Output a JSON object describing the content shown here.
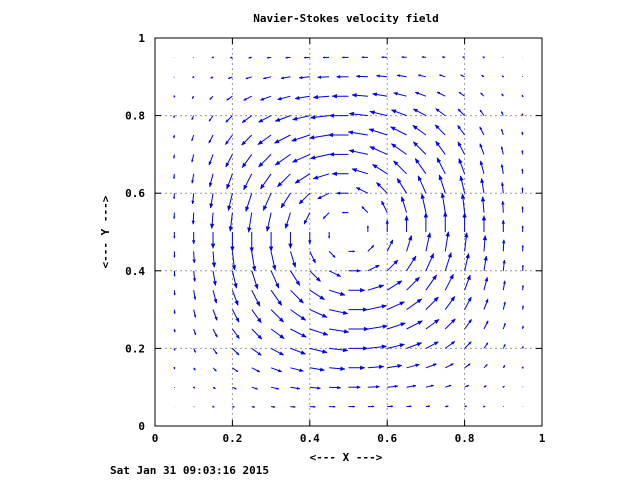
{
  "chart_data": {
    "type": "quiver",
    "title": "Navier-Stokes velocity field",
    "xlabel": "<--- X --->",
    "ylabel": "<--- Y --->",
    "xlim": [
      0,
      1
    ],
    "ylim": [
      0,
      1
    ],
    "xticks": [
      "0",
      "0.2",
      "0.4",
      "0.6",
      "0.8",
      "1"
    ],
    "yticks": [
      "0",
      "0.2",
      "0.4",
      "0.6",
      "0.8",
      "1"
    ],
    "xtick_values": [
      0,
      0.2,
      0.4,
      0.6,
      0.8,
      1
    ],
    "ytick_values": [
      0,
      0.2,
      0.4,
      0.6,
      0.8,
      1
    ],
    "grid": true,
    "grid_lines": [
      0.2,
      0.4,
      0.6,
      0.8
    ],
    "color": "#0000ee",
    "grid_color": "#999999",
    "field": {
      "description_formula": "u = sin(pi*x)^2 * sin(2*pi*y), v = -sin(pi*y)^2 * sin(2*pi*x)",
      "x_start": 0.05,
      "x_end": 0.95,
      "x_count": 19,
      "y_start": 0.05,
      "y_end": 0.95,
      "y_count": 19,
      "max_arrow_length": 0.052
    }
  },
  "timestamp": "Sat Jan 31 09:03:16 2015"
}
